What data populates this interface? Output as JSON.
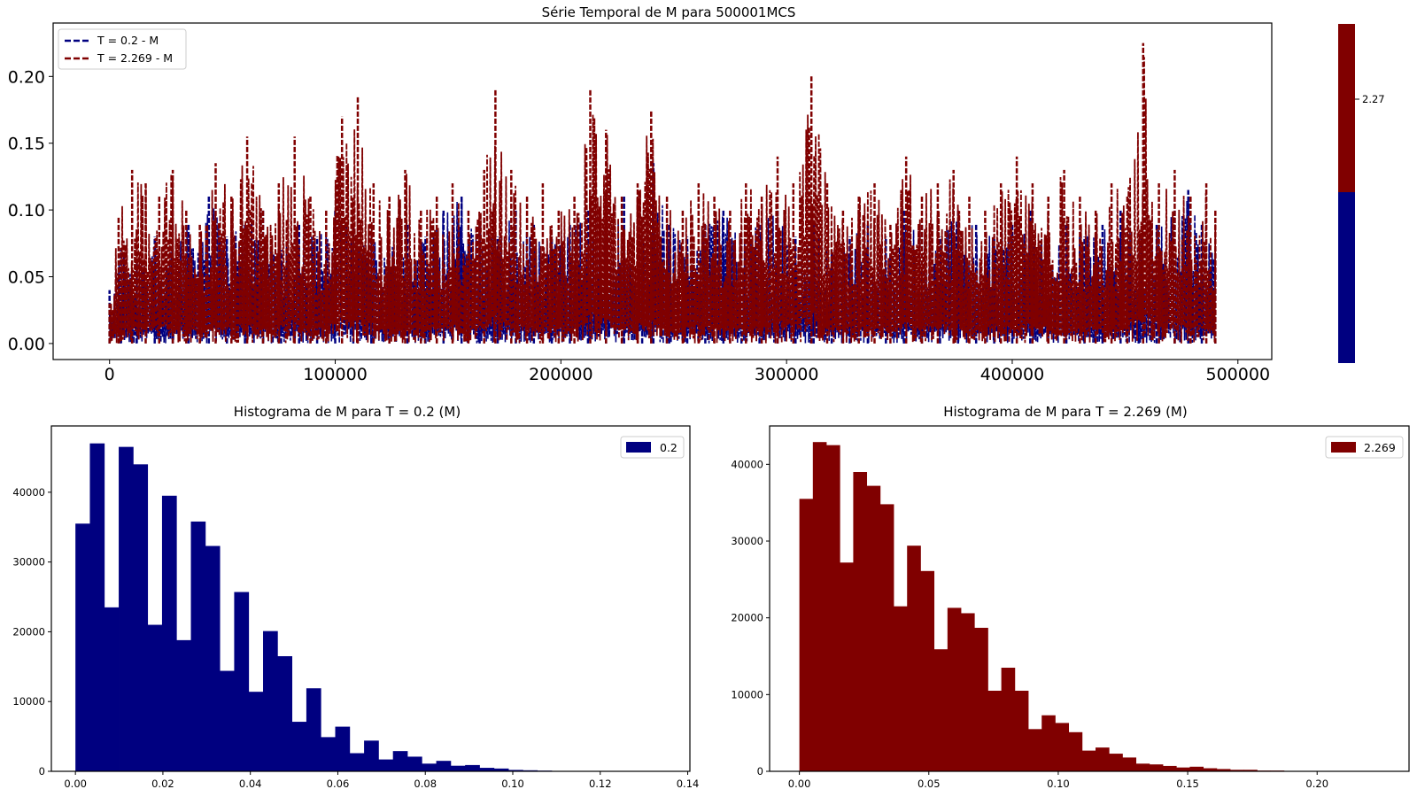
{
  "colors": {
    "low": "#000080",
    "high": "#800000",
    "frame": "#000000",
    "legend_border": "#cccccc"
  },
  "chart_data": [
    {
      "type": "line",
      "title": "Série Temporal de M para 500001MCS",
      "xlabel": "",
      "ylabel": "",
      "xlim": [
        -25000,
        515000
      ],
      "ylim": [
        -0.012,
        0.24
      ],
      "xticks": [
        0,
        100000,
        200000,
        300000,
        400000,
        500000
      ],
      "yticks": [
        0.0,
        0.05,
        0.1,
        0.15,
        0.2
      ],
      "grid": false,
      "legend_position": "top-left",
      "series": [
        {
          "name": "T = 0.2 - M",
          "color": "#000080",
          "style": "dashed",
          "peaks_x": [
            0,
            5000,
            12000,
            20000,
            28000,
            35000,
            44000,
            52000,
            60000,
            68000,
            76000,
            84000,
            92000,
            100000,
            108000,
            116000,
            124000,
            132000,
            140000,
            148000,
            156000,
            164000,
            172000,
            180000,
            188000,
            196000,
            204000,
            212000,
            220000,
            228000,
            236000,
            241000,
            248000,
            256000,
            264000,
            272000,
            280000,
            288000,
            296000,
            304000,
            312000,
            320000,
            328000,
            336000,
            344000,
            352000,
            360000,
            368000,
            376000,
            384000,
            392000,
            400000,
            408000,
            416000,
            424000,
            432000,
            440000,
            448000,
            456000,
            464000,
            472000,
            478000,
            484000,
            490000
          ],
          "peaks_y": [
            0.04,
            0.07,
            0.06,
            0.08,
            0.07,
            0.09,
            0.11,
            0.08,
            0.09,
            0.1,
            0.07,
            0.09,
            0.08,
            0.1,
            0.09,
            0.08,
            0.07,
            0.09,
            0.08,
            0.1,
            0.11,
            0.09,
            0.08,
            0.1,
            0.09,
            0.08,
            0.09,
            0.1,
            0.09,
            0.11,
            0.08,
            0.135,
            0.09,
            0.08,
            0.09,
            0.1,
            0.08,
            0.09,
            0.1,
            0.08,
            0.09,
            0.07,
            0.08,
            0.09,
            0.08,
            0.1,
            0.09,
            0.08,
            0.1,
            0.09,
            0.08,
            0.09,
            0.1,
            0.08,
            0.09,
            0.08,
            0.09,
            0.1,
            0.08,
            0.09,
            0.1,
            0.115,
            0.09,
            0.07
          ]
        },
        {
          "name": "T = 2.269 - M",
          "color": "#800000",
          "style": "dashed",
          "peaks_x": [
            0,
            4000,
            10000,
            16000,
            22000,
            28000,
            34000,
            40000,
            47000,
            54000,
            61000,
            68000,
            75000,
            82000,
            89000,
            96000,
            103000,
            110000,
            117000,
            124000,
            131000,
            138000,
            145000,
            152000,
            159000,
            166000,
            171000,
            178000,
            185000,
            192000,
            199000,
            206000,
            213000,
            220000,
            227000,
            234000,
            240000,
            247000,
            254000,
            261000,
            268000,
            275000,
            282000,
            289000,
            296000,
            303000,
            311000,
            318000,
            325000,
            332000,
            339000,
            346000,
            353000,
            360000,
            367000,
            374000,
            381000,
            388000,
            395000,
            402000,
            409000,
            416000,
            423000,
            430000,
            437000,
            444000,
            451000,
            458000,
            465000,
            472000,
            479000,
            486000,
            490000
          ],
          "peaks_y": [
            0.03,
            0.095,
            0.13,
            0.12,
            0.11,
            0.13,
            0.1,
            0.09,
            0.135,
            0.11,
            0.155,
            0.1,
            0.12,
            0.155,
            0.11,
            0.1,
            0.17,
            0.185,
            0.12,
            0.11,
            0.13,
            0.1,
            0.11,
            0.12,
            0.1,
            0.13,
            0.19,
            0.13,
            0.11,
            0.12,
            0.1,
            0.11,
            0.19,
            0.16,
            0.11,
            0.12,
            0.175,
            0.11,
            0.1,
            0.12,
            0.11,
            0.1,
            0.12,
            0.11,
            0.14,
            0.12,
            0.2,
            0.12,
            0.1,
            0.11,
            0.12,
            0.09,
            0.14,
            0.11,
            0.12,
            0.13,
            0.11,
            0.1,
            0.12,
            0.14,
            0.12,
            0.11,
            0.13,
            0.11,
            0.1,
            0.12,
            0.11,
            0.225,
            0.12,
            0.13,
            0.11,
            0.12,
            0.1
          ]
        }
      ]
    },
    {
      "type": "colorbar",
      "tick_label": "2.27",
      "segments": [
        "#000080",
        "#800000"
      ]
    },
    {
      "type": "bar",
      "title": "Histograma de M para T = 0.2 (M)",
      "xlim": [
        -0.0055,
        0.1405
      ],
      "ylim": [
        0,
        49500
      ],
      "xticks": [
        0.0,
        0.02,
        0.04,
        0.06,
        0.08,
        0.1,
        0.12,
        0.14
      ],
      "xtick_labels": [
        "0.00",
        "0.02",
        "0.04",
        "0.06",
        "0.08",
        "0.10",
        "0.12",
        "0.14"
      ],
      "yticks": [
        0,
        10000,
        20000,
        30000,
        40000
      ],
      "bin_start": 0.0,
      "bin_width": 0.0033,
      "legend_position": "top-right",
      "series": [
        {
          "name": "0.2",
          "color": "#000080",
          "values": [
            35500,
            47000,
            23500,
            46500,
            44000,
            21000,
            39500,
            18800,
            35800,
            32300,
            14400,
            25700,
            11400,
            20100,
            16500,
            7100,
            11900,
            4900,
            6400,
            2600,
            4400,
            1700,
            2900,
            2100,
            1100,
            1500,
            800,
            900,
            500,
            400,
            200,
            150,
            100,
            60,
            40,
            20,
            10,
            5,
            3,
            2,
            1,
            1
          ]
        }
      ]
    },
    {
      "type": "bar",
      "title": "Histograma de M para T = 2.269 (M)",
      "xlim": [
        -0.0115,
        0.2355
      ],
      "ylim": [
        0,
        45000
      ],
      "xticks": [
        0.0,
        0.05,
        0.1,
        0.15,
        0.2
      ],
      "xtick_labels": [
        "0.00",
        "0.05",
        "0.10",
        "0.15",
        "0.20"
      ],
      "yticks": [
        0,
        10000,
        20000,
        30000,
        40000
      ],
      "bin_start": 0.0,
      "bin_width": 0.0052,
      "legend_position": "top-right",
      "series": [
        {
          "name": "2.269",
          "color": "#800000",
          "values": [
            35500,
            42900,
            42500,
            27200,
            39000,
            37200,
            34800,
            21500,
            29400,
            26100,
            15900,
            21300,
            20600,
            18700,
            10500,
            13500,
            10500,
            5500,
            7300,
            6300,
            5100,
            2700,
            3100,
            2300,
            1800,
            1000,
            900,
            700,
            500,
            600,
            400,
            300,
            200,
            200,
            100,
            100,
            50,
            30,
            20,
            10
          ]
        }
      ]
    }
  ]
}
